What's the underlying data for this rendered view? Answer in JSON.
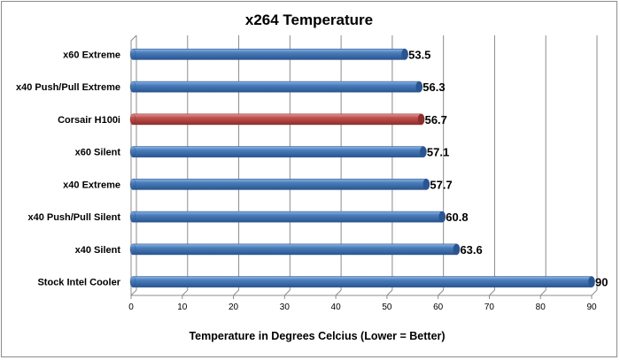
{
  "chart_data": {
    "type": "bar",
    "orientation": "horizontal",
    "title": "x264 Temperature",
    "xlabel": "Temperature in Degrees Celcius (Lower = Better)",
    "ylabel": "",
    "categories": [
      "x60 Extreme",
      "x40 Push/Pull Extreme",
      "Corsair H100i",
      "x60 Silent",
      "x40 Extreme",
      "x40 Push/Pull Silent",
      "x40 Silent",
      "Stock Intel Cooler"
    ],
    "values": [
      53.5,
      56.3,
      56.7,
      57.1,
      57.7,
      60.8,
      63.6,
      90
    ],
    "data_labels": [
      "53.5",
      "56.3",
      "56.7",
      "57.1",
      "57.7",
      "60.8",
      "63.6",
      "90"
    ],
    "highlight_index": 2,
    "xlim": [
      0,
      90
    ],
    "xticks": [
      0,
      10,
      20,
      30,
      40,
      50,
      60,
      70,
      80,
      90
    ],
    "grid": true,
    "legend": "none",
    "colors": {
      "bar": "#4a7ebb",
      "bar_dark": "#2a5590",
      "bar_light": "#8fb4e3",
      "highlight": "#c0504d",
      "highlight_dark": "#8c2f2c",
      "highlight_light": "#e39a98",
      "grid": "#8c8c8c"
    }
  }
}
